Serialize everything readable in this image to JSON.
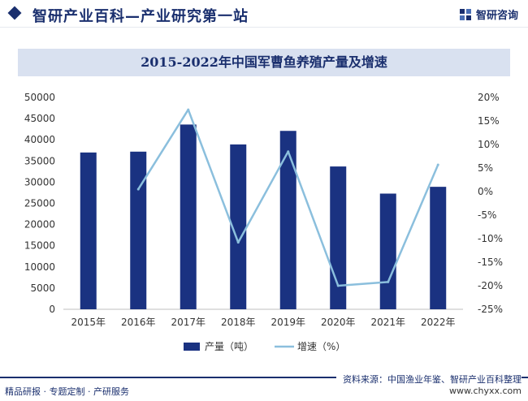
{
  "header": {
    "title": "智研产业百科—产业研究第一站",
    "logo_text": "智研咨询"
  },
  "footer": {
    "source": "资料来源：中国渔业年鉴、智研产业百科整理",
    "services": "精品研报 · 专题定制 · 产研服务",
    "website": "www.chyxx.com"
  },
  "colors": {
    "bar": "#1a3281",
    "line": "#8bbfdd",
    "title_bg": "#d9e1f0",
    "brand": "#1a2f6e"
  },
  "chart_data": {
    "type": "bar+line",
    "title": "2015-2022年中国军曹鱼养殖产量及增速",
    "categories": [
      "2015年",
      "2016年",
      "2017年",
      "2018年",
      "2019年",
      "2020年",
      "2021年",
      "2022年"
    ],
    "series": [
      {
        "name": "产量（吨）",
        "type": "bar",
        "axis": "left",
        "values": [
          37000,
          37200,
          43600,
          38900,
          42100,
          33700,
          27300,
          28900
        ]
      },
      {
        "name": "增速（%）",
        "type": "line",
        "axis": "right",
        "values": [
          null,
          0.5,
          17.4,
          -10.8,
          8.5,
          -20.0,
          -19.2,
          5.7
        ]
      }
    ],
    "y_left": {
      "min": 0,
      "max": 50000,
      "step": 5000,
      "ticks": [
        "0",
        "5000",
        "10000",
        "15000",
        "20000",
        "25000",
        "30000",
        "35000",
        "40000",
        "45000",
        "50000"
      ]
    },
    "y_right": {
      "min": -25,
      "max": 20,
      "step": 5,
      "ticks": [
        "-25%",
        "-20%",
        "-15%",
        "-10%",
        "-5%",
        "0%",
        "5%",
        "10%",
        "15%",
        "20%"
      ]
    },
    "legend": {
      "position": "bottom",
      "items": [
        "产量（吨）",
        "增速（%）"
      ]
    },
    "grid": false
  }
}
